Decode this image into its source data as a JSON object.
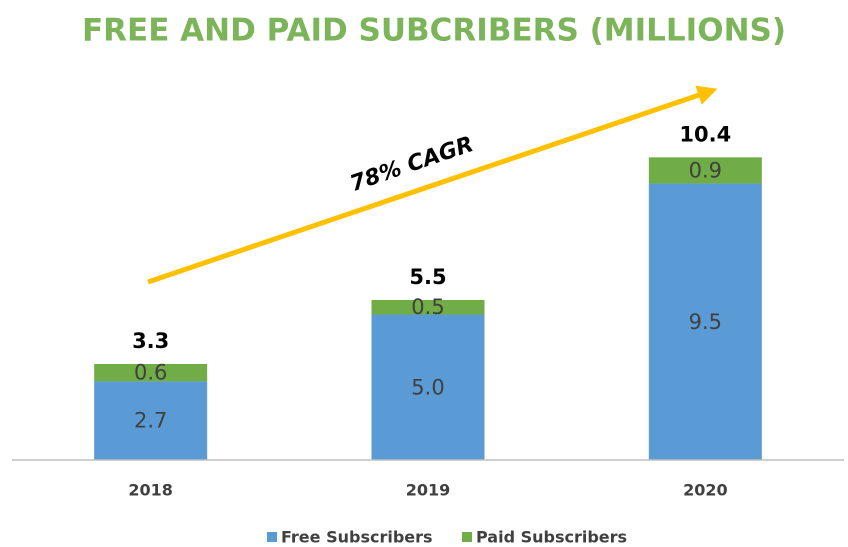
{
  "chart_data": {
    "type": "stacked_bar",
    "title": "FREE AND PAID SUBCRIBERS (MILLIONS)",
    "annotation": "78% CAGR",
    "categories": [
      "2018",
      "2019",
      "2020"
    ],
    "series": [
      {
        "name": "Free Subscribers",
        "color": "#5b9bd5",
        "values": [
          2.7,
          5.0,
          9.5
        ],
        "value_labels": [
          "2.7",
          "5.0",
          "9.5"
        ]
      },
      {
        "name": "Paid Subscribers",
        "color": "#70ad47",
        "values": [
          0.6,
          0.5,
          0.9
        ]
      }
    ],
    "totals": [
      3.3,
      5.5,
      10.4
    ],
    "ylim": [
      0,
      12
    ]
  }
}
